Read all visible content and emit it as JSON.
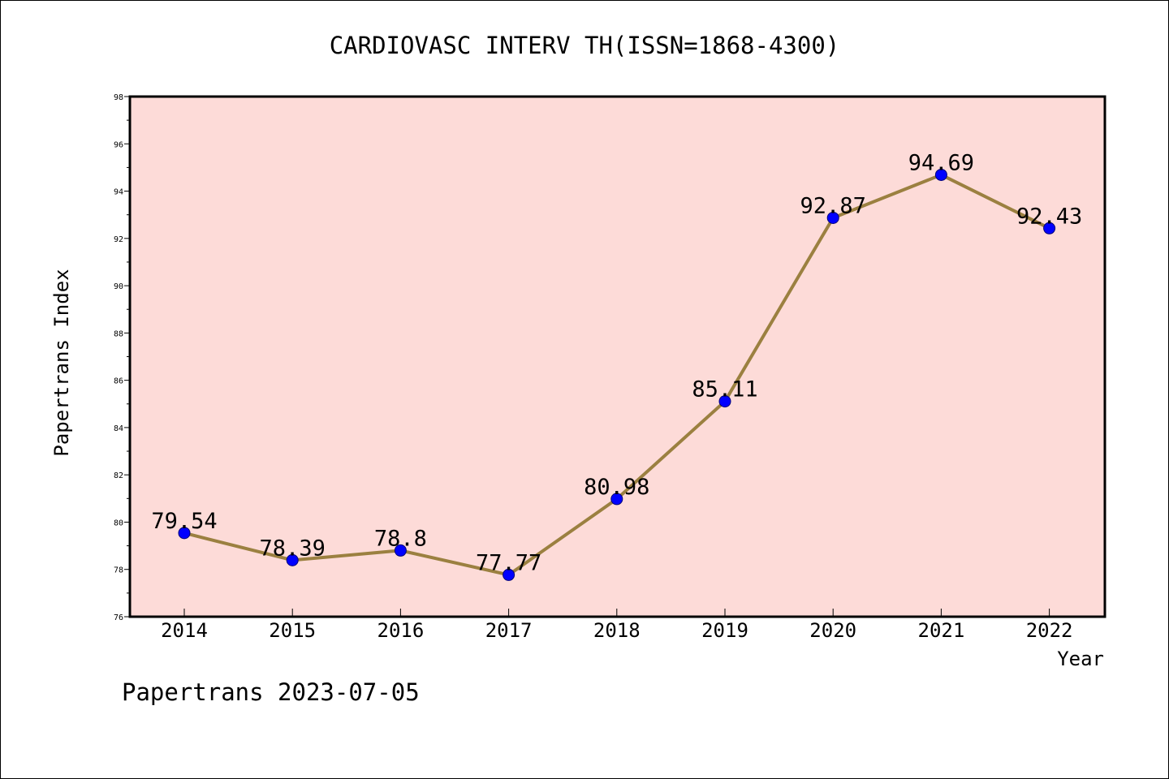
{
  "chart_data": {
    "type": "line",
    "title": "CARDIOVASC INTERV TH(ISSN=1868-4300)",
    "xlabel": "Year",
    "ylabel": "Papertrans Index",
    "categories": [
      "2014",
      "2015",
      "2016",
      "2017",
      "2018",
      "2019",
      "2020",
      "2021",
      "2022"
    ],
    "series": [
      {
        "values": [
          79.54,
          78.39,
          78.8,
          77.77,
          80.98,
          85.11,
          92.87,
          94.69,
          92.43
        ],
        "labels": [
          "79.54",
          "78.39",
          "78.8",
          "77.77",
          "80.98",
          "85.11",
          "92.87",
          "94.69",
          "92.43"
        ]
      }
    ],
    "ylim": [
      76,
      98
    ],
    "yticks": [
      "76",
      "78",
      "80",
      "82",
      "84",
      "86",
      "88",
      "90",
      "92",
      "94",
      "96",
      "98"
    ],
    "grid": false,
    "legend": "none",
    "footer": "Papertrans 2023-07-05",
    "colors": {
      "plot_background": "#fddbd8",
      "line": "#9b8040",
      "marker": "#0000ff",
      "marker_edge": "#00007a",
      "axes": "#000000"
    }
  }
}
